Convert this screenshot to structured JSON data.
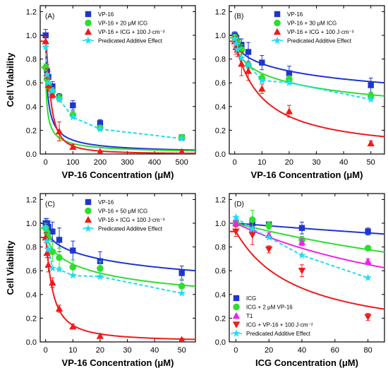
{
  "chart_data": [
    {
      "type": "scatter",
      "panel_label": "(A)",
      "xlabel": "VP-16 Concentration (μM)",
      "ylabel": "Cell Viability",
      "xlim": [
        -20,
        550
      ],
      "ylim": [
        0.0,
        1.25
      ],
      "xticks": [
        0,
        100,
        200,
        300,
        400,
        500
      ],
      "yticks": [
        0.0,
        0.2,
        0.4,
        0.6,
        0.8,
        1.0,
        1.2
      ],
      "legend_position": "top-right",
      "series": [
        {
          "name": "VP-16",
          "marker": "square",
          "color": "#1f35d0",
          "x": [
            0,
            5,
            10,
            25,
            50,
            100,
            200,
            500
          ],
          "y": [
            1.0,
            0.7,
            0.65,
            0.57,
            0.48,
            0.41,
            0.26,
            0.14
          ],
          "err": [
            0.05,
            0.05,
            0.05,
            0.04,
            0.03,
            0.04,
            0.03,
            0.02
          ],
          "fit": {
            "a": 8,
            "n": 0.8,
            "y0": 0.0
          }
        },
        {
          "name": "VP-16 + 20 μM ICG",
          "marker": "circle",
          "color": "#2ede2e",
          "x": [
            0,
            5,
            10,
            25,
            50,
            100,
            200,
            500
          ],
          "y": [
            0.73,
            0.63,
            0.58,
            0.53,
            0.47,
            0.33,
            0.22,
            0.14
          ],
          "err": [
            0.03,
            0.03,
            0.03,
            0.03,
            0.03,
            0.03,
            0.02,
            0.02
          ],
          "fit": {
            "a": 7,
            "n": 0.75,
            "y0": 0.0
          }
        },
        {
          "name": "VP-16 + ICG + 100 J·cm⁻²",
          "marker": "triangle",
          "color": "#f01a1a",
          "x": [
            0,
            5,
            10,
            25,
            50,
            100,
            200,
            500
          ],
          "y": [
            0.95,
            0.68,
            0.58,
            0.5,
            0.19,
            0.06,
            0.02,
            0.02
          ],
          "err": [
            0.04,
            0.04,
            0.05,
            0.03,
            0.08,
            0.02,
            0.01,
            0.01
          ],
          "fit": {
            "a": 18,
            "n": 1.5,
            "y0": 0.0
          }
        },
        {
          "name": "Predicated Additive Effect",
          "marker": "star",
          "color": "#22dcf0",
          "dashed": true,
          "x": [
            0,
            5,
            10,
            25,
            50,
            100,
            200,
            500
          ],
          "y": [
            0.9,
            0.67,
            0.6,
            0.53,
            0.46,
            0.31,
            0.21,
            0.13
          ]
        }
      ]
    },
    {
      "type": "scatter",
      "panel_label": "(B)",
      "xlabel": "VP-16 Concentration (μM)",
      "ylabel": "",
      "xlim": [
        -2,
        55
      ],
      "ylim": [
        0.0,
        1.25
      ],
      "xticks": [
        0,
        10,
        20,
        30,
        40,
        50
      ],
      "yticks": [
        0.0,
        0.2,
        0.4,
        0.6,
        0.8,
        1.0,
        1.2
      ],
      "legend_position": "top-right",
      "series": [
        {
          "name": "VP-16",
          "marker": "square",
          "color": "#1f35d0",
          "x": [
            0,
            0.5,
            1,
            2.5,
            5,
            10,
            20,
            50
          ],
          "y": [
            1.0,
            0.98,
            0.95,
            0.92,
            0.86,
            0.77,
            0.68,
            0.58
          ],
          "err": [
            0.03,
            0.03,
            0.04,
            0.05,
            0.08,
            0.06,
            0.06,
            0.06
          ],
          "fit": {
            "a": 55,
            "n": 0.5,
            "y0": 0.2
          }
        },
        {
          "name": "VP-16 + 30 μM ICG",
          "marker": "circle",
          "color": "#2ede2e",
          "x": [
            0,
            0.5,
            1,
            2.5,
            5,
            10,
            20,
            50
          ],
          "y": [
            0.98,
            0.96,
            0.94,
            0.88,
            0.75,
            0.64,
            0.63,
            0.49
          ],
          "err": [
            0.03,
            0.03,
            0.03,
            0.04,
            0.03,
            0.03,
            0.03,
            0.03
          ],
          "fit": {
            "a": 28,
            "n": 0.55,
            "y0": 0.15
          }
        },
        {
          "name": "VP-16 + ICG + 100 J·cm⁻²",
          "marker": "triangle",
          "color": "#f01a1a",
          "x": [
            0,
            0.5,
            1,
            2.5,
            5,
            10,
            20,
            50
          ],
          "y": [
            0.95,
            0.9,
            0.88,
            0.76,
            0.7,
            0.55,
            0.36,
            0.09
          ],
          "err": [
            0.04,
            0.06,
            0.06,
            0.1,
            0.08,
            0.04,
            0.05,
            0.02
          ],
          "fit": {
            "a": 10,
            "n": 1.0,
            "y0": 0.0
          }
        },
        {
          "name": "Predicated Additive Effect",
          "marker": "star",
          "color": "#22dcf0",
          "dashed": true,
          "x": [
            0,
            0.5,
            1,
            2.5,
            5,
            10,
            20,
            50
          ],
          "y": [
            0.97,
            0.93,
            0.88,
            0.81,
            0.75,
            0.62,
            0.6,
            0.46
          ]
        }
      ]
    },
    {
      "type": "scatter",
      "panel_label": "(C)",
      "xlabel": "VP-16 Concentration (μM)",
      "ylabel": "Cell Viability",
      "xlim": [
        -2,
        55
      ],
      "ylim": [
        0.0,
        1.25
      ],
      "xticks": [
        0,
        10,
        20,
        30,
        40,
        50
      ],
      "yticks": [
        0.0,
        0.2,
        0.4,
        0.6,
        0.8,
        1.0,
        1.2
      ],
      "legend_position": "top-right",
      "series": [
        {
          "name": "VP-16",
          "marker": "square",
          "color": "#1f35d0",
          "x": [
            0,
            0.5,
            1,
            2.5,
            5,
            10,
            20,
            50
          ],
          "y": [
            1.0,
            1.0,
            0.97,
            0.93,
            0.86,
            0.77,
            0.68,
            0.58
          ],
          "err": [
            0.04,
            0.04,
            0.05,
            0.08,
            0.1,
            0.08,
            0.08,
            0.06
          ],
          "fit": {
            "a": 55,
            "n": 0.5,
            "y0": 0.2
          }
        },
        {
          "name": "VP-16 + 50 μM ICG",
          "marker": "circle",
          "color": "#2ede2e",
          "x": [
            0,
            0.5,
            1,
            2.5,
            5,
            10,
            20,
            50
          ],
          "y": [
            0.96,
            0.92,
            0.88,
            0.76,
            0.71,
            0.63,
            0.62,
            0.47
          ],
          "err": [
            0.04,
            0.04,
            0.05,
            0.08,
            0.08,
            0.06,
            0.06,
            0.06
          ],
          "fit": {
            "a": 25,
            "n": 0.55,
            "y0": 0.15
          }
        },
        {
          "name": "VP-16 + ICG + 100 J·cm⁻²",
          "marker": "triangle",
          "color": "#f01a1a",
          "x": [
            0,
            0.5,
            1,
            2.5,
            5,
            10,
            20,
            50
          ],
          "y": [
            0.88,
            0.75,
            0.65,
            0.5,
            0.28,
            0.13,
            0.05,
            0.02
          ],
          "err": [
            0.04,
            0.04,
            0.06,
            0.04,
            0.03,
            0.02,
            0.02,
            0.01
          ],
          "fit": {
            "a": 2.5,
            "n": 1.2,
            "y0": 0.0
          }
        },
        {
          "name": "Predicated Additive Effect",
          "marker": "star",
          "color": "#22dcf0",
          "dashed": true,
          "x": [
            0,
            0.5,
            1,
            2.5,
            5,
            10,
            20,
            50
          ],
          "y": [
            0.96,
            0.85,
            0.78,
            0.62,
            0.61,
            0.56,
            0.55,
            0.41
          ]
        }
      ]
    },
    {
      "type": "scatter",
      "panel_label": "(D)",
      "xlabel": "ICG Concentration (μM)",
      "ylabel": "",
      "xlim": [
        -4,
        90
      ],
      "ylim": [
        0.0,
        1.25
      ],
      "xticks": [
        0,
        20,
        40,
        60,
        80
      ],
      "yticks": [
        0.0,
        0.2,
        0.4,
        0.6,
        0.8,
        1.0,
        1.2
      ],
      "legend_position": "bottom-left",
      "series": [
        {
          "name": "ICG",
          "marker": "square",
          "color": "#1f35d0",
          "x": [
            0,
            10,
            20,
            40,
            80
          ],
          "y": [
            1.0,
            1.0,
            0.99,
            0.96,
            0.93
          ],
          "err": [
            0.03,
            0.03,
            0.02,
            0.05,
            0.03
          ],
          "fit": {
            "a": 900,
            "n": 1.0,
            "y0": 0.0
          }
        },
        {
          "name": "ICG + 2 μM VP-16",
          "marker": "circle",
          "color": "#2ede2e",
          "x": [
            0,
            10,
            20,
            40,
            80
          ],
          "y": [
            1.0,
            1.03,
            0.98,
            0.86,
            0.79
          ],
          "err": [
            0.03,
            0.08,
            0.03,
            0.03,
            0.02
          ],
          "fit": {
            "a": 280,
            "n": 1.0,
            "y0": 0.0
          }
        },
        {
          "name": "T1",
          "marker": "triangle",
          "color": "#ee22ee",
          "x": [
            0,
            10,
            20,
            40,
            80
          ],
          "y": [
            1.0,
            0.95,
            0.9,
            0.84,
            0.68
          ],
          "err": [
            0.02,
            0.03,
            0.02,
            0.03,
            0.02
          ],
          "fit": {
            "a": 150,
            "n": 1.0,
            "y0": 0.0
          }
        },
        {
          "name": "ICG + VP-16 + 100 J·cm⁻²",
          "marker": "tridown",
          "color": "#f01a1a",
          "x": [
            0,
            10,
            20,
            40,
            80
          ],
          "y": [
            0.93,
            0.9,
            0.78,
            0.6,
            0.21
          ],
          "err": [
            0.04,
            0.08,
            0.03,
            0.05,
            0.03
          ],
          "fit": {
            "a": 38,
            "n": 1.0,
            "y0": 0.0
          }
        },
        {
          "name": "Predicated Additive Effect",
          "marker": "star",
          "color": "#22dcf0",
          "dashed": true,
          "x": [
            0,
            10,
            20,
            40,
            80
          ],
          "y": [
            1.05,
            0.95,
            0.88,
            0.73,
            0.54
          ]
        }
      ]
    }
  ]
}
